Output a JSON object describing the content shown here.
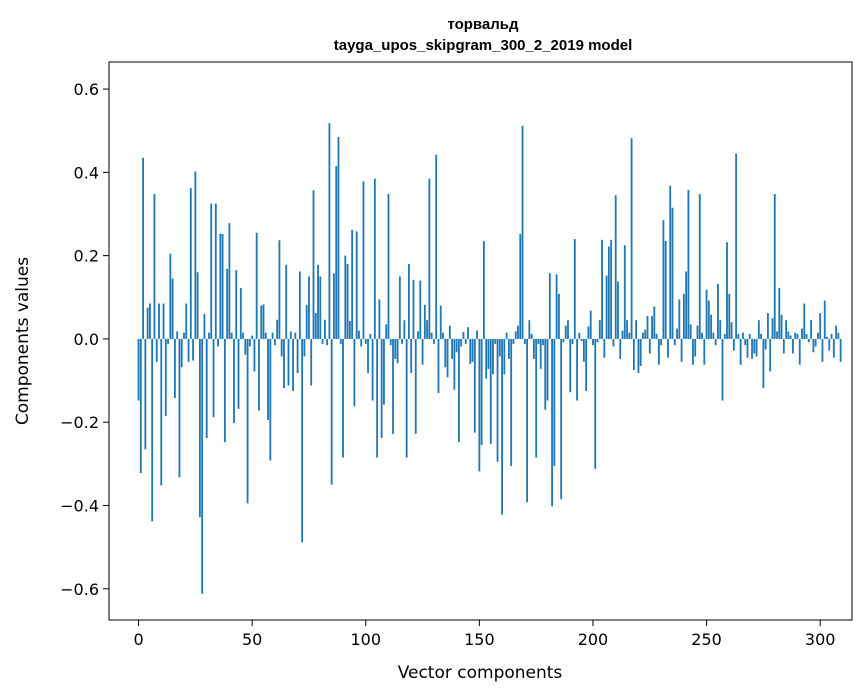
{
  "chart_data": {
    "type": "bar",
    "title": "торвальд",
    "subtitle": "tayga_upos_skipgram_300_2_2019 model",
    "xlabel": "Vector components",
    "ylabel": "Components values",
    "xlim": [
      -13,
      314
    ],
    "ylim": [
      -0.675,
      0.665
    ],
    "xticks": [
      0,
      50,
      100,
      150,
      200,
      250,
      300
    ],
    "xtick_labels": [
      "0",
      "50",
      "100",
      "150",
      "200",
      "250",
      "300"
    ],
    "yticks": [
      -0.6,
      -0.4,
      -0.2,
      0.0,
      0.2,
      0.4,
      0.6
    ],
    "ytick_labels": [
      "−0.6",
      "−0.4",
      "−0.2",
      "0.0",
      "0.2",
      "0.4",
      "0.6"
    ],
    "grid": false,
    "bar_color": "#1f77b4",
    "series": [
      {
        "values": [
          -0.148,
          -0.322,
          0.435,
          -0.265,
          0.075,
          0.085,
          -0.438,
          0.348,
          -0.055,
          0.085,
          -0.352,
          0.085,
          -0.185,
          -0.012,
          0.205,
          0.145,
          -0.142,
          0.018,
          -0.332,
          -0.068,
          0.015,
          0.085,
          -0.055,
          0.362,
          -0.052,
          0.402,
          0.16,
          -0.428,
          -0.612,
          0.06,
          -0.238,
          0.015,
          0.325,
          -0.188,
          0.325,
          -0.018,
          0.253,
          0.252,
          -0.248,
          0.168,
          0.278,
          0.015,
          -0.202,
          0.165,
          -0.168,
          0.122,
          0.015,
          -0.038,
          -0.395,
          -0.018,
          0.008,
          -0.078,
          0.255,
          -0.172,
          0.08,
          0.083,
          0.015,
          -0.195,
          -0.292,
          0.015,
          -0.015,
          0.046,
          0.237,
          -0.042,
          -0.118,
          0.178,
          -0.112,
          0.018,
          -0.125,
          0.015,
          -0.082,
          0.162,
          -0.488,
          -0.042,
          0.082,
          0.15,
          -0.112,
          0.357,
          0.062,
          0.178,
          0.15,
          -0.012,
          0.046,
          -0.015,
          0.518,
          -0.35,
          0.157,
          0.415,
          0.485,
          -0.012,
          -0.285,
          0.2,
          0.18,
          0.043,
          0.262,
          -0.162,
          0.258,
          0.02,
          -0.018,
          0.378,
          -0.012,
          -0.082,
          0.012,
          -0.148,
          0.385,
          -0.285,
          0.095,
          -0.238,
          -0.158,
          0.035,
          0.348,
          -0.015,
          -0.228,
          -0.048,
          -0.058,
          0.15,
          -0.012,
          0.045,
          -0.285,
          0.18,
          -0.082,
          0.142,
          -0.228,
          0.018,
          0.14,
          -0.062,
          0.082,
          0.045,
          0.385,
          0.015,
          -0.012,
          0.442,
          -0.13,
          0.08,
          0.015,
          -0.068,
          -0.092,
          0.032,
          -0.048,
          -0.122,
          -0.032,
          -0.248,
          -0.018,
          0.017,
          -0.012,
          0.028,
          -0.06,
          -0.055,
          -0.225,
          0.02,
          -0.318,
          -0.255,
          0.235,
          -0.095,
          -0.072,
          -0.252,
          -0.085,
          -0.012,
          -0.295,
          -0.042,
          -0.422,
          -0.085,
          0.015,
          -0.048,
          -0.305,
          -0.012,
          0.018,
          0.032,
          0.252,
          0.512,
          -0.012,
          -0.392,
          0.045,
          0.012,
          -0.048,
          -0.285,
          -0.012,
          -0.072,
          -0.015,
          -0.17,
          -0.148,
          0.158,
          -0.402,
          -0.305,
          0.155,
          0.108,
          -0.385,
          -0.008,
          0.032,
          0.045,
          -0.128,
          -0.012,
          0.24,
          -0.148,
          0.015,
          -0.005,
          -0.055,
          -0.125,
          0.03,
          0.068,
          -0.015,
          -0.312,
          -0.008,
          0.045,
          0.238,
          -0.045,
          0.152,
          0.222,
          0.238,
          -0.018,
          0.345,
          0.138,
          -0.048,
          0.02,
          0.225,
          0.045,
          0.015,
          0.482,
          -0.075,
          0.045,
          -0.082,
          -0.065,
          0.015,
          0.022,
          0.055,
          -0.035,
          0.055,
          0.078,
          0.012,
          -0.062,
          -0.015,
          0.285,
          0.235,
          -0.045,
          0.368,
          0.315,
          -0.015,
          0.025,
          0.095,
          -0.055,
          0.108,
          0.162,
          0.358,
          0.035,
          -0.062,
          -0.042,
          0.032,
          0.348,
          0.015,
          -0.062,
          0.118,
          0.092,
          0.058,
          0.015,
          -0.015,
          0.132,
          0.045,
          -0.148,
          0.012,
          0.232,
          0.108,
          0.04,
          -0.028,
          0.445,
          0.012,
          -0.062,
          0.015,
          -0.015,
          -0.045,
          0.012,
          -0.048,
          -0.035,
          -0.042,
          0.045,
          0.012,
          -0.118,
          -0.025,
          0.062,
          -0.078,
          0.05,
          0.348,
          0.018,
          0.122,
          0.058,
          -0.035,
          0.045,
          0.018,
          0.008,
          -0.035,
          0.015,
          0.012,
          -0.062,
          0.025,
          0.085,
          0.012,
          -0.008,
          0.045,
          -0.032,
          -0.018,
          0.015,
          0.062,
          -0.055,
          0.092,
          0.005,
          -0.028,
          0.012,
          -0.045,
          0.032,
          0.015,
          -0.055
        ]
      }
    ]
  }
}
